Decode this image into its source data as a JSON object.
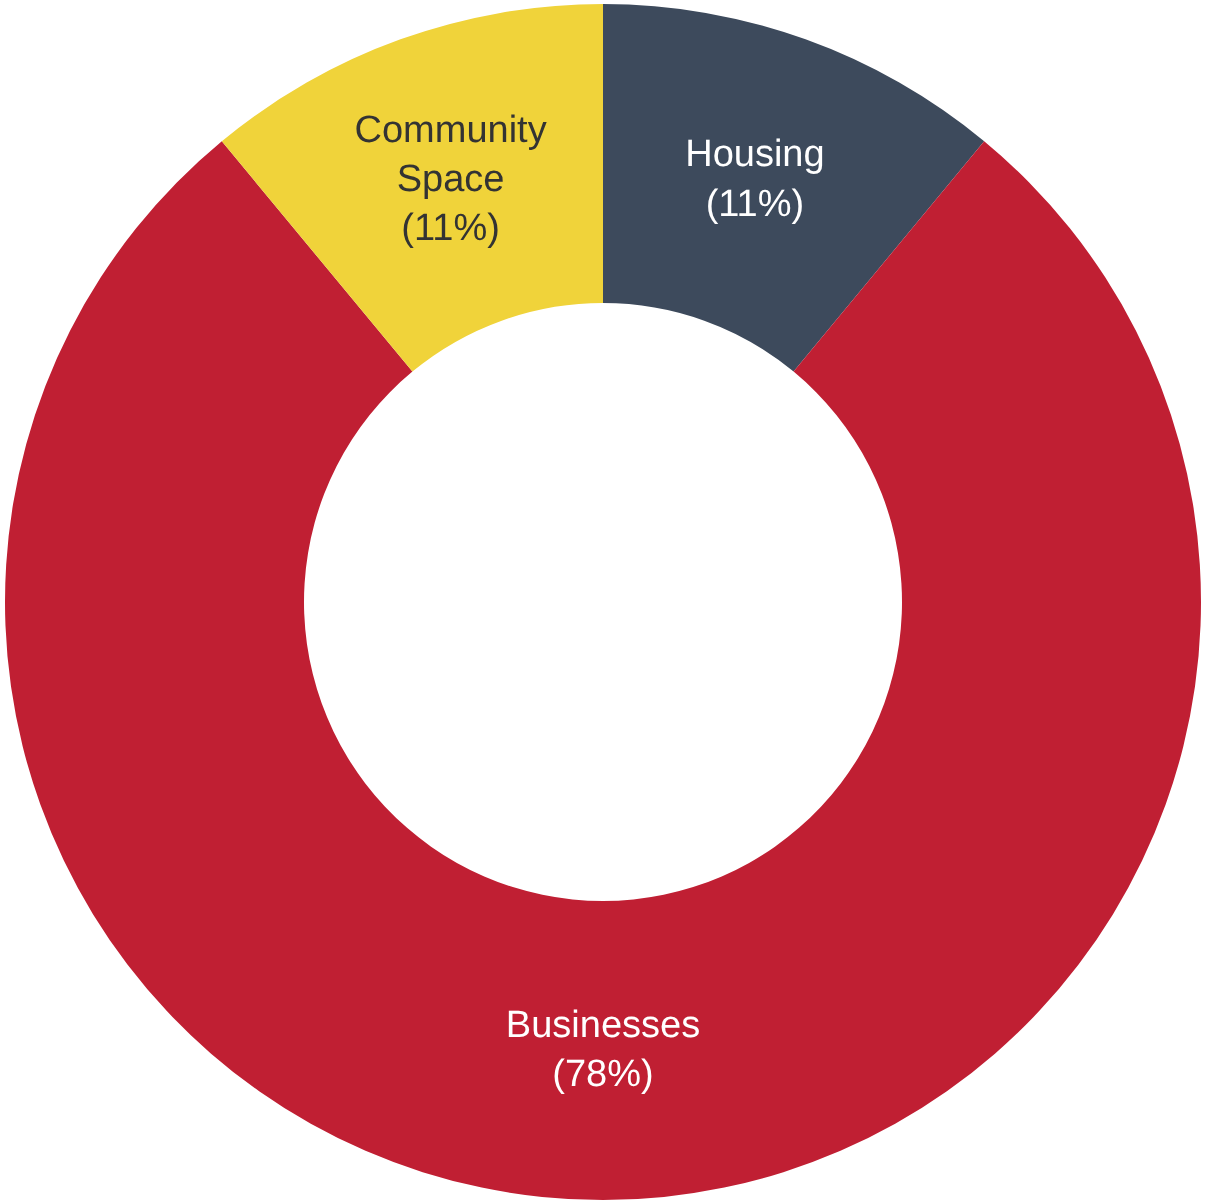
{
  "chart_data": {
    "type": "donut",
    "categories": [
      "Housing",
      "Businesses",
      "Community Space"
    ],
    "values": [
      11,
      78,
      11
    ],
    "value_labels": [
      "(11%)",
      "(78%)",
      "(11%)"
    ],
    "colors": [
      "#3d4a5c",
      "#c01f33",
      "#f0d33a"
    ],
    "legend": false
  }
}
